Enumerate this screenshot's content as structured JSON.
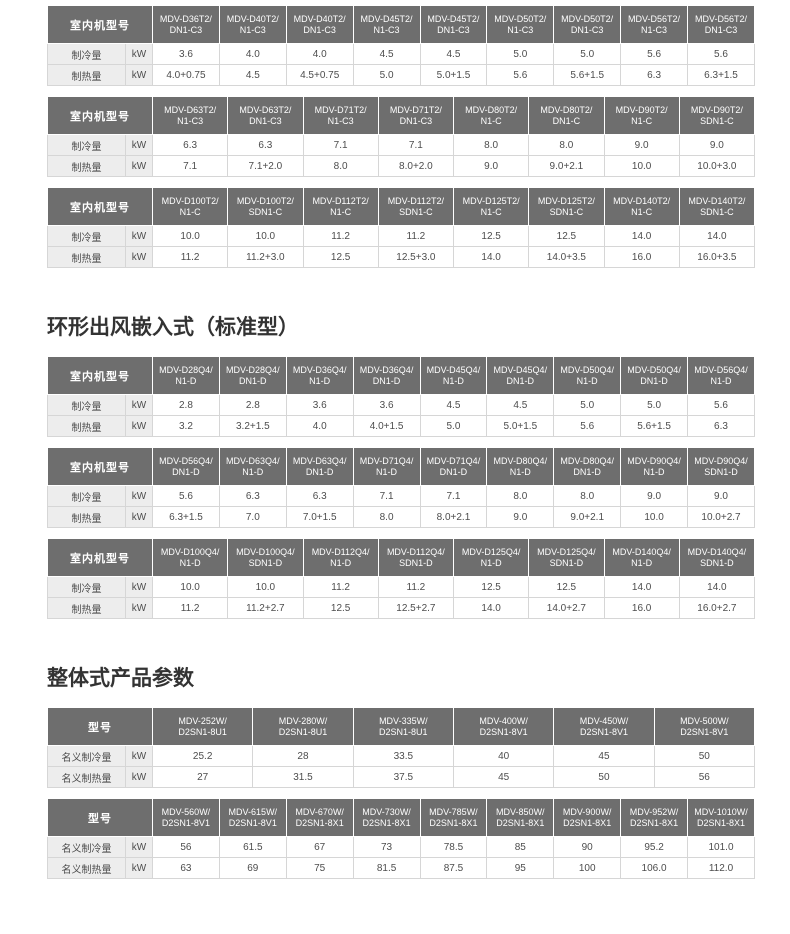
{
  "colors": {
    "header_bg": "#6e6e6e",
    "header_text": "#ffffff",
    "label_cell_bg": "#ededed",
    "cell_border": "#d6d6d6",
    "cell_text": "#4d4d4d",
    "heading_text": "#333333"
  },
  "page": {
    "sections": [
      {
        "heading": null,
        "tables": [
          {
            "header_label": "室内机型号",
            "models": [
              "MDV-D36T2/DN1-C3",
              "MDV-D40T2/N1-C3",
              "MDV-D40T2/DN1-C3",
              "MDV-D45T2/N1-C3",
              "MDV-D45T2/DN1-C3",
              "MDV-D50T2/N1-C3",
              "MDV-D50T2/DN1-C3",
              "MDV-D56T2/N1-C3",
              "MDV-D56T2/DN1-C3"
            ],
            "rows": [
              {
                "label": "制冷量",
                "unit": "kW",
                "values": [
                  "3.6",
                  "4.0",
                  "4.0",
                  "4.5",
                  "4.5",
                  "5.0",
                  "5.0",
                  "5.6",
                  "5.6"
                ]
              },
              {
                "label": "制热量",
                "unit": "kW",
                "values": [
                  "4.0+0.75",
                  "4.5",
                  "4.5+0.75",
                  "5.0",
                  "5.0+1.5",
                  "5.6",
                  "5.6+1.5",
                  "6.3",
                  "6.3+1.5"
                ]
              }
            ]
          },
          {
            "header_label": "室内机型号",
            "models": [
              "MDV-D63T2/N1-C3",
              "MDV-D63T2/DN1-C3",
              "MDV-D71T2/N1-C3",
              "MDV-D71T2/DN1-C3",
              "MDV-D80T2/N1-C",
              "MDV-D80T2/DN1-C",
              "MDV-D90T2/N1-C",
              "MDV-D90T2/SDN1-C"
            ],
            "rows": [
              {
                "label": "制冷量",
                "unit": "kW",
                "values": [
                  "6.3",
                  "6.3",
                  "7.1",
                  "7.1",
                  "8.0",
                  "8.0",
                  "9.0",
                  "9.0"
                ]
              },
              {
                "label": "制热量",
                "unit": "kW",
                "values": [
                  "7.1",
                  "7.1+2.0",
                  "8.0",
                  "8.0+2.0",
                  "9.0",
                  "9.0+2.1",
                  "10.0",
                  "10.0+3.0"
                ]
              }
            ]
          },
          {
            "header_label": "室内机型号",
            "models": [
              "MDV-D100T2/N1-C",
              "MDV-D100T2/SDN1-C",
              "MDV-D112T2/N1-C",
              "MDV-D112T2/SDN1-C",
              "MDV-D125T2/N1-C",
              "MDV-D125T2/SDN1-C",
              "MDV-D140T2/N1-C",
              "MDV-D140T2/SDN1-C"
            ],
            "rows": [
              {
                "label": "制冷量",
                "unit": "kW",
                "values": [
                  "10.0",
                  "10.0",
                  "11.2",
                  "11.2",
                  "12.5",
                  "12.5",
                  "14.0",
                  "14.0"
                ]
              },
              {
                "label": "制热量",
                "unit": "kW",
                "values": [
                  "11.2",
                  "11.2+3.0",
                  "12.5",
                  "12.5+3.0",
                  "14.0",
                  "14.0+3.5",
                  "16.0",
                  "16.0+3.5"
                ]
              }
            ]
          }
        ]
      },
      {
        "heading": "环形出风嵌入式（标准型）",
        "tables": [
          {
            "header_label": "室内机型号",
            "models": [
              "MDV-D28Q4/N1-D",
              "MDV-D28Q4/DN1-D",
              "MDV-D36Q4/N1-D",
              "MDV-D36Q4/DN1-D",
              "MDV-D45Q4/N1-D",
              "MDV-D45Q4/DN1-D",
              "MDV-D50Q4/N1-D",
              "MDV-D50Q4/DN1-D",
              "MDV-D56Q4/N1-D"
            ],
            "rows": [
              {
                "label": "制冷量",
                "unit": "kW",
                "values": [
                  "2.8",
                  "2.8",
                  "3.6",
                  "3.6",
                  "4.5",
                  "4.5",
                  "5.0",
                  "5.0",
                  "5.6"
                ]
              },
              {
                "label": "制热量",
                "unit": "kW",
                "values": [
                  "3.2",
                  "3.2+1.5",
                  "4.0",
                  "4.0+1.5",
                  "5.0",
                  "5.0+1.5",
                  "5.6",
                  "5.6+1.5",
                  "6.3"
                ]
              }
            ]
          },
          {
            "header_label": "室内机型号",
            "models": [
              "MDV-D56Q4/DN1-D",
              "MDV-D63Q4/N1-D",
              "MDV-D63Q4/DN1-D",
              "MDV-D71Q4/N1-D",
              "MDV-D71Q4/DN1-D",
              "MDV-D80Q4/N1-D",
              "MDV-D80Q4/DN1-D",
              "MDV-D90Q4/N1-D",
              "MDV-D90Q4/SDN1-D"
            ],
            "rows": [
              {
                "label": "制冷量",
                "unit": "kW",
                "values": [
                  "5.6",
                  "6.3",
                  "6.3",
                  "7.1",
                  "7.1",
                  "8.0",
                  "8.0",
                  "9.0",
                  "9.0"
                ]
              },
              {
                "label": "制热量",
                "unit": "kW",
                "values": [
                  "6.3+1.5",
                  "7.0",
                  "7.0+1.5",
                  "8.0",
                  "8.0+2.1",
                  "9.0",
                  "9.0+2.1",
                  "10.0",
                  "10.0+2.7"
                ]
              }
            ]
          },
          {
            "header_label": "室内机型号",
            "models": [
              "MDV-D100Q4/N1-D",
              "MDV-D100Q4/SDN1-D",
              "MDV-D112Q4/N1-D",
              "MDV-D112Q4/SDN1-D",
              "MDV-D125Q4/N1-D",
              "MDV-D125Q4/SDN1-D",
              "MDV-D140Q4/N1-D",
              "MDV-D140Q4/SDN1-D"
            ],
            "rows": [
              {
                "label": "制冷量",
                "unit": "kW",
                "values": [
                  "10.0",
                  "10.0",
                  "11.2",
                  "11.2",
                  "12.5",
                  "12.5",
                  "14.0",
                  "14.0"
                ]
              },
              {
                "label": "制热量",
                "unit": "kW",
                "values": [
                  "11.2",
                  "11.2+2.7",
                  "12.5",
                  "12.5+2.7",
                  "14.0",
                  "14.0+2.7",
                  "16.0",
                  "16.0+2.7"
                ]
              }
            ]
          }
        ]
      },
      {
        "heading": "整体式产品参数",
        "tables": [
          {
            "header_label": "型号",
            "models": [
              "MDV-252W/D2SN1-8U1",
              "MDV-280W/D2SN1-8U1",
              "MDV-335W/D2SN1-8U1",
              "MDV-400W/D2SN1-8V1",
              "MDV-450W/D2SN1-8V1",
              "MDV-500W/D2SN1-8V1"
            ],
            "rows": [
              {
                "label": "名义制冷量",
                "unit": "kW",
                "values": [
                  "25.2",
                  "28",
                  "33.5",
                  "40",
                  "45",
                  "50"
                ]
              },
              {
                "label": "名义制热量",
                "unit": "kW",
                "values": [
                  "27",
                  "31.5",
                  "37.5",
                  "45",
                  "50",
                  "56"
                ]
              }
            ]
          },
          {
            "header_label": "型号",
            "models": [
              "MDV-560W/D2SN1-8V1",
              "MDV-615W/D2SN1-8V1",
              "MDV-670W/D2SN1-8X1",
              "MDV-730W/D2SN1-8X1",
              "MDV-785W/D2SN1-8X1",
              "MDV-850W/D2SN1-8X1",
              "MDV-900W/D2SN1-8X1",
              "MDV-952W/D2SN1-8X1",
              "MDV-1010W/D2SN1-8X1"
            ],
            "rows": [
              {
                "label": "名义制冷量",
                "unit": "kW",
                "values": [
                  "56",
                  "61.5",
                  "67",
                  "73",
                  "78.5",
                  "85",
                  "90",
                  "95.2",
                  "101.0"
                ]
              },
              {
                "label": "名义制热量",
                "unit": "kW",
                "values": [
                  "63",
                  "69",
                  "75",
                  "81.5",
                  "87.5",
                  "95",
                  "100",
                  "106.0",
                  "112.0"
                ]
              }
            ]
          }
        ]
      }
    ]
  }
}
